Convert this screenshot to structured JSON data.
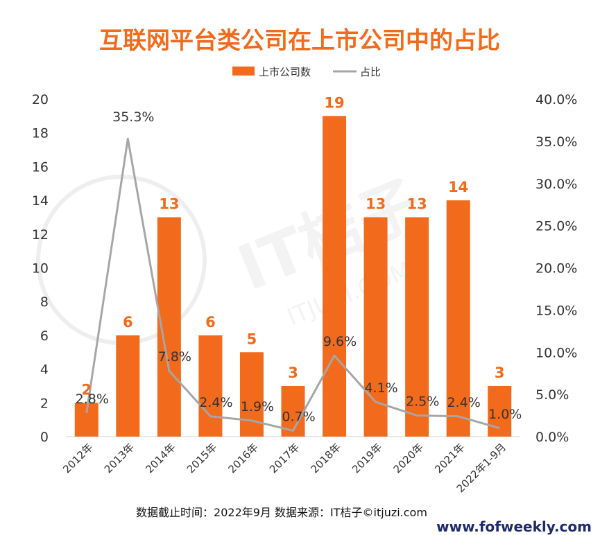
{
  "chart_data": {
    "type": "bar+line",
    "title": "互联网平台类公司在上市公司中的占比",
    "categories": [
      "2012年",
      "2013年",
      "2014年",
      "2015年",
      "2016年",
      "2017年",
      "2018年",
      "2019年",
      "2020年",
      "2021年",
      "2022年1-9月"
    ],
    "series": [
      {
        "name": "上市公司数",
        "kind": "bar",
        "axis": "left",
        "color": "#f26a1b",
        "values": [
          2,
          6,
          13,
          6,
          5,
          3,
          19,
          13,
          13,
          14,
          3
        ],
        "labels": [
          "2",
          "6",
          "13",
          "6",
          "5",
          "3",
          "19",
          "13",
          "13",
          "14",
          "3"
        ]
      },
      {
        "name": "占比",
        "kind": "line",
        "axis": "right",
        "color": "#a6a6a6",
        "values": [
          2.8,
          35.3,
          7.8,
          2.4,
          1.9,
          0.7,
          9.6,
          4.1,
          2.5,
          2.4,
          1.0
        ],
        "labels": [
          "2.8%",
          "35.3%",
          "7.8%",
          "2.4%",
          "1.9%",
          "0.7%",
          "9.6%",
          "4.1%",
          "2.5%",
          "2.4%",
          "1.0%"
        ]
      }
    ],
    "y_left": {
      "min": 0,
      "max": 20,
      "ticks": [
        "0",
        "2",
        "4",
        "6",
        "8",
        "10",
        "12",
        "14",
        "16",
        "18",
        "20"
      ]
    },
    "y_right": {
      "min": 0,
      "max": 40,
      "ticks": [
        "0.0%",
        "5.0%",
        "10.0%",
        "15.0%",
        "20.0%",
        "25.0%",
        "30.0%",
        "35.0%",
        "40.0%"
      ]
    },
    "legend_position": "top-center",
    "grid": false
  },
  "footer": {
    "source": "数据截止时间：2022年9月 数据来源：IT桔子©itjuzi.com",
    "website": "www.fofweekly.com"
  },
  "watermark": {
    "text": "IT桔子",
    "subtext": "ITJUZI.COM"
  }
}
